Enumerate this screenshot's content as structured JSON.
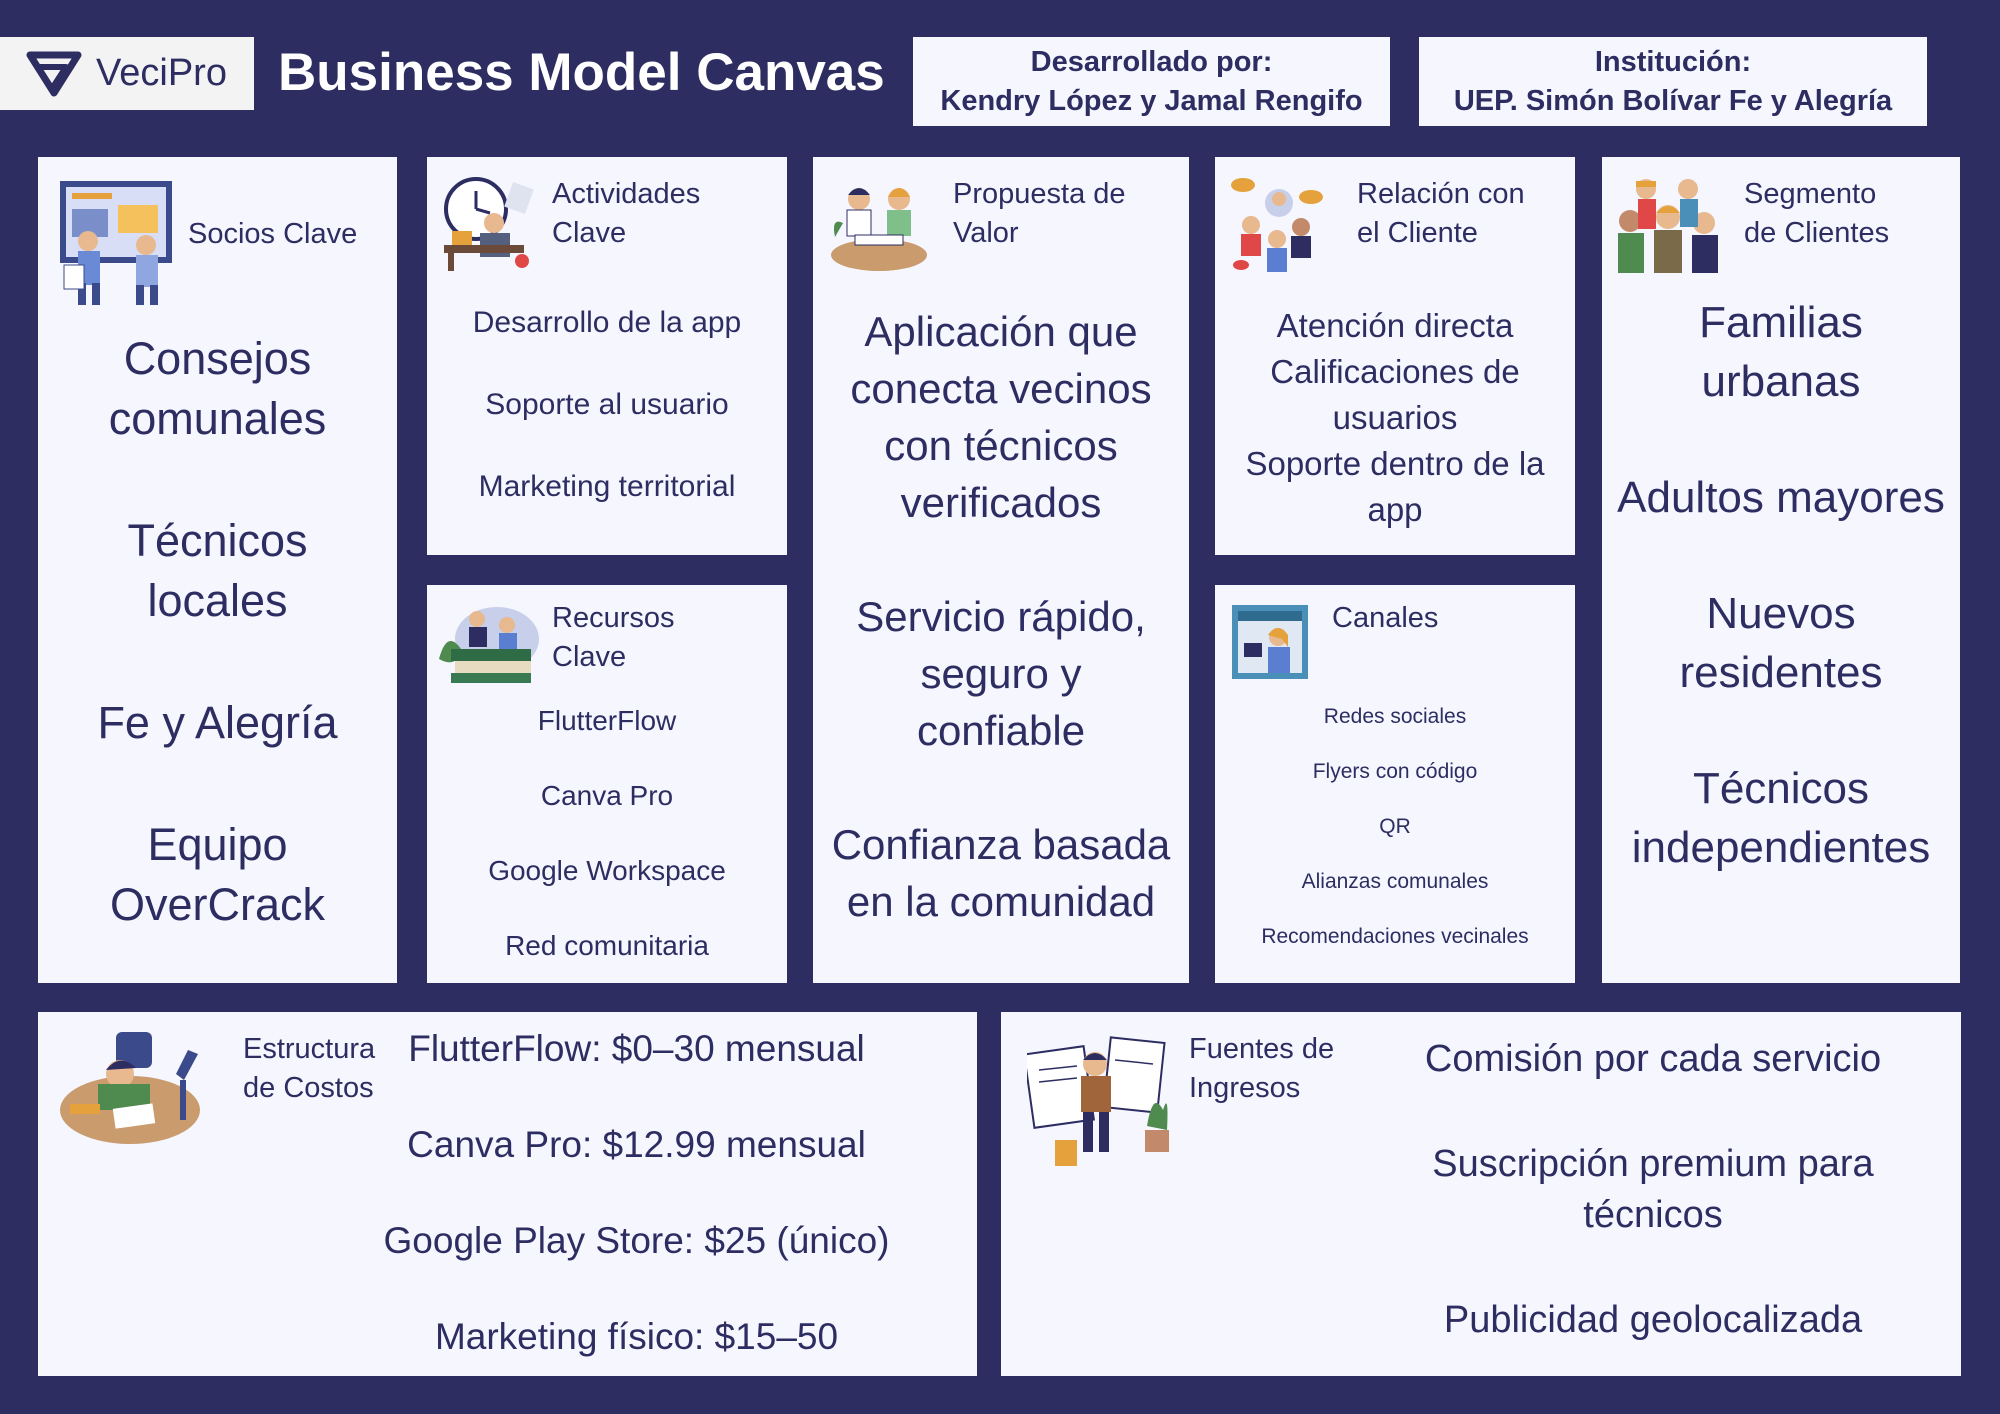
{
  "header": {
    "logo_text": "VeciPro",
    "title": "Business Model Canvas",
    "developed_label": "Desarrollado por:",
    "developed_names": "Kendry López y Jamal Rengifo",
    "institution_label": "Institución:",
    "institution_name": "UEP. Simón Bolívar Fe y Alegría"
  },
  "sections": {
    "socios": {
      "title": "Socios Clave",
      "items": [
        "Consejos comunales",
        "Técnicos locales",
        "Fe y Alegría",
        "Equipo OverCrack"
      ]
    },
    "actividades": {
      "title_1": "Actividades",
      "title_2": "Clave",
      "items": [
        "Desarrollo de la app",
        "Soporte al usuario",
        "Marketing territorial"
      ]
    },
    "recursos": {
      "title_1": "Recursos",
      "title_2": "Clave",
      "items": [
        "FlutterFlow",
        "Canva Pro",
        "Google Workspace",
        "Red comunitaria"
      ]
    },
    "propuesta": {
      "title_1": "Propuesta de",
      "title_2": "Valor",
      "items": [
        "Aplicación que conecta vecinos con técnicos verificados",
        "Servicio rápido, seguro y confiable",
        "Confianza basada en la comunidad"
      ]
    },
    "relacion": {
      "title_1": "Relación con",
      "title_2": "el Cliente",
      "items": [
        "Atención directa",
        "Calificaciones de usuarios",
        "Soporte dentro de la app"
      ]
    },
    "canales": {
      "title": "Canales",
      "items": [
        "Redes sociales",
        "Flyers con código",
        "QR",
        "Alianzas comunales",
        "Recomendaciones vecinales"
      ]
    },
    "segmento": {
      "title_1": "Segmento",
      "title_2": "de Clientes",
      "items": [
        "Familias urbanas",
        "Adultos mayores",
        "Nuevos residentes",
        "Técnicos independientes"
      ]
    },
    "costos": {
      "title_1": "Estructura",
      "title_2": "de Costos",
      "items": [
        "FlutterFlow: $0–30 mensual",
        "Canva Pro: $12.99 mensual",
        "Google Play Store: $25 (único)",
        "Marketing físico: $15–50"
      ]
    },
    "ingresos": {
      "title_1": "Fuentes de",
      "title_2": "Ingresos",
      "items": [
        "Comisión por cada servicio",
        "Suscripción premium para técnicos",
        "Publicidad geolocalizada"
      ]
    }
  },
  "icons": {
    "logo": "vecipro-logo-icon",
    "socios": "strategy-meeting-illustration-icon",
    "actividades": "office-worker-clock-illustration-icon",
    "recursos": "people-on-books-illustration-icon",
    "propuesta": "team-working-illustration-icon",
    "relacion": "people-chatting-illustration-icon",
    "canales": "person-in-window-illustration-icon",
    "segmento": "group-of-people-illustration-icon",
    "costos": "tired-student-desk-illustration-icon",
    "ingresos": "person-with-documents-illustration-icon"
  },
  "colors": {
    "background": "#2d2d62",
    "card": "#f5f6fe",
    "text": "#2d2d62"
  }
}
